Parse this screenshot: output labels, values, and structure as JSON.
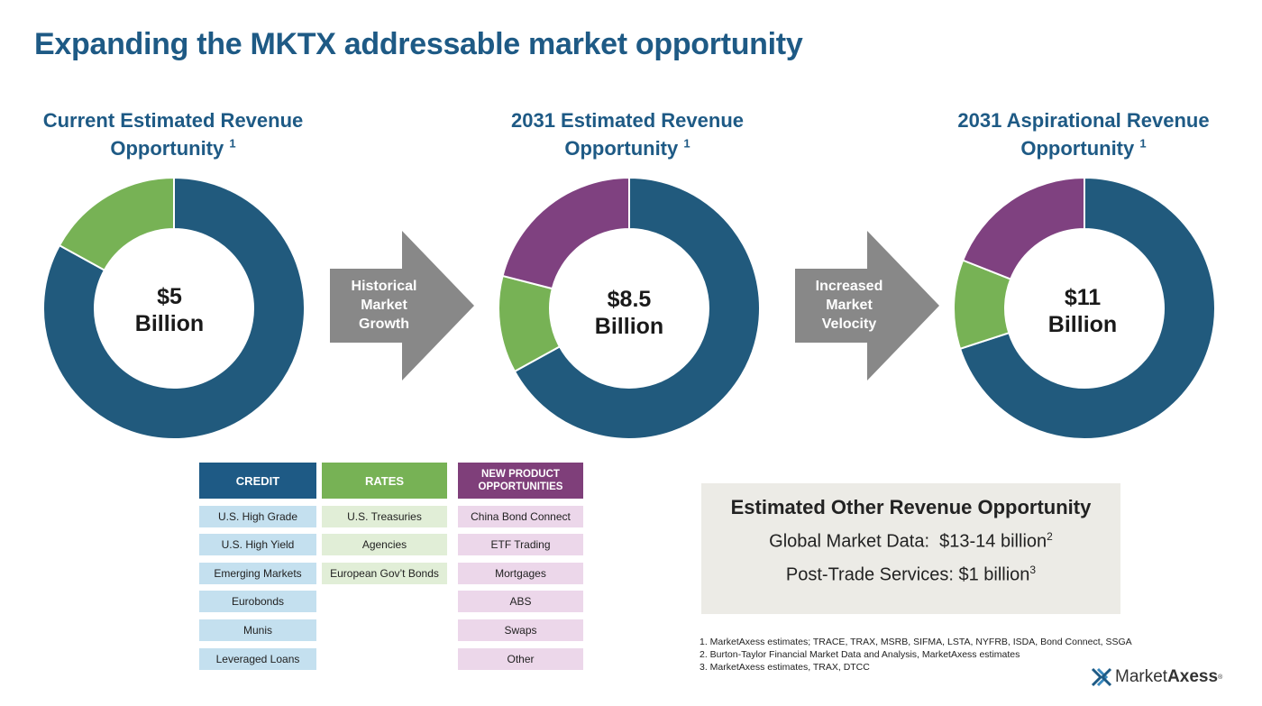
{
  "page": {
    "title": "Expanding the MKTX addressable market opportunity"
  },
  "chart_data": [
    {
      "type": "pie",
      "title": "Current Estimated Revenue Opportunity",
      "footnote_ref": "1",
      "center_value": "$5",
      "center_unit": "Billion",
      "categories": [
        "Credit",
        "Rates"
      ],
      "values": [
        0.83,
        0.17
      ],
      "colors": [
        "#215a7d",
        "#77b255"
      ]
    },
    {
      "type": "pie",
      "title": "2031 Estimated Revenue Opportunity",
      "footnote_ref": "1",
      "center_value": "$8.5",
      "center_unit": "Billion",
      "categories": [
        "Credit",
        "Rates",
        "New Product Opportunities"
      ],
      "values": [
        0.67,
        0.12,
        0.21
      ],
      "colors": [
        "#215a7d",
        "#77b255",
        "#7f4180"
      ]
    },
    {
      "type": "pie",
      "title": "2031 Aspirational Revenue Opportunity",
      "footnote_ref": "1",
      "center_value": "$11",
      "center_unit": "Billion",
      "categories": [
        "Credit",
        "Rates",
        "New Product Opportunities"
      ],
      "values": [
        0.7,
        0.11,
        0.19
      ],
      "colors": [
        "#215a7d",
        "#77b255",
        "#7f4180"
      ]
    }
  ],
  "arrows": [
    {
      "label_lines": [
        "Historical",
        "Market",
        "Growth"
      ]
    },
    {
      "label_lines": [
        "Increased",
        "Market",
        "Velocity"
      ]
    }
  ],
  "arrow_color": "#888888",
  "legend_columns": [
    {
      "header": "CREDIT",
      "color": "#1e5a85",
      "items": [
        "U.S. High Grade",
        "U.S. High Yield",
        "Emerging Markets",
        "Eurobonds",
        "Munis",
        "Leveraged Loans"
      ]
    },
    {
      "header": "RATES",
      "color": "#77b255",
      "items": [
        "U.S. Treasuries",
        "Agencies",
        "European Gov’t Bonds"
      ]
    },
    {
      "header_lines": [
        "NEW PRODUCT",
        "OPPORTUNITIES"
      ],
      "color": "#7f3f7a",
      "items": [
        "China Bond Connect",
        "ETF Trading",
        "Mortgages",
        "ABS",
        "Swaps",
        "Other"
      ]
    }
  ],
  "other_revenue": {
    "title": "Estimated Other Revenue Opportunity",
    "market_data_label": "Global Market Data:",
    "market_data_value": "$13-14 billion",
    "market_data_ref": "2",
    "post_trade_label": "Post-Trade Services:",
    "post_trade_value": "$1 billion",
    "post_trade_ref": "3"
  },
  "footnotes": [
    "1. MarketAxess estimates; TRACE, TRAX, MSRB, SIFMA, LSTA, NYFRB, ISDA, Bond Connect, SSGA",
    "2. Burton-Taylor Financial Market Data and Analysis, MarketAxess estimates",
    "3. MarketAxess estimates, TRAX, DTCC"
  ],
  "logo": {
    "name_regular": "Market",
    "name_bold": "Axess",
    "mark": "®",
    "icon": "marketaxess-x-icon"
  }
}
